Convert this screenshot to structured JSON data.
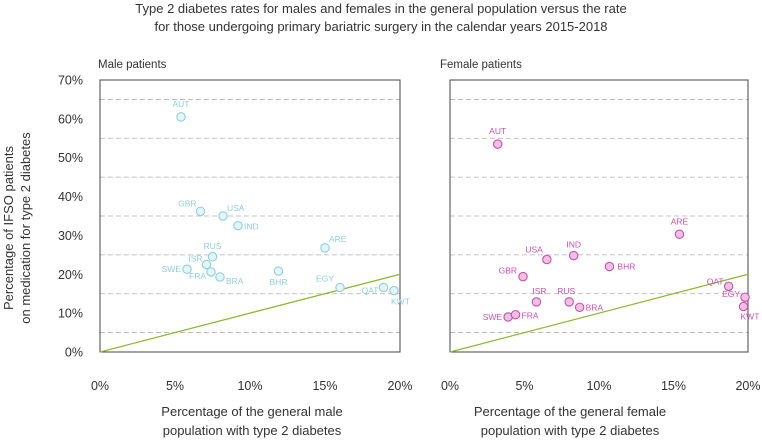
{
  "title_lines": [
    "Type 2 diabetes rates for males and females in the general population versus the rate",
    "for those undergoing primary bariatric surgery in the calendar years 2015-2018"
  ],
  "ylabel_lines": [
    "Percentage of IFSO patients",
    "on medication for type 2 diabetes"
  ],
  "y_ticks": [
    "0%",
    "10%",
    "20%",
    "30%",
    "40%",
    "50%",
    "60%",
    "70%"
  ],
  "x_ticks": [
    "0%",
    "5%",
    "10%",
    "15%",
    "20%"
  ],
  "colors": {
    "male": "#8ecfda",
    "female": "#cc4fae",
    "reference": "#8cba2c",
    "grid": "#b0b0b0"
  },
  "chart_data": [
    {
      "type": "scatter",
      "title": "Male patients",
      "xlabel_lines": [
        "Percentage of the general male",
        "population with type 2 diabetes"
      ],
      "xlim": [
        0,
        20
      ],
      "ylim": [
        0,
        70
      ],
      "grid": "dashed horizontal lines at 5, 15, 25, 35, 45, 55, 65",
      "reference_line": {
        "label": "",
        "x": [
          0,
          20
        ],
        "y": [
          0,
          20
        ]
      },
      "points": [
        {
          "label": "AUT",
          "x": 5.4,
          "y": 60.5
        },
        {
          "label": "GBR",
          "x": 6.7,
          "y": 36.2
        },
        {
          "label": "USA",
          "x": 8.2,
          "y": 35.0
        },
        {
          "label": "IND",
          "x": 9.2,
          "y": 32.5
        },
        {
          "label": "ARE",
          "x": 15.0,
          "y": 26.8
        },
        {
          "label": "RUS",
          "x": 7.5,
          "y": 24.5
        },
        {
          "label": "ISR",
          "x": 7.1,
          "y": 22.5
        },
        {
          "label": "SWE",
          "x": 5.8,
          "y": 21.3
        },
        {
          "label": "FRA",
          "x": 7.4,
          "y": 20.6
        },
        {
          "label": "BRA",
          "x": 8.0,
          "y": 19.3
        },
        {
          "label": "BHR",
          "x": 11.9,
          "y": 20.8
        },
        {
          "label": "EGY",
          "x": 16.0,
          "y": 16.6
        },
        {
          "label": "QAT",
          "x": 18.9,
          "y": 16.6
        },
        {
          "label": "KWT",
          "x": 19.6,
          "y": 15.8
        }
      ]
    },
    {
      "type": "scatter",
      "title": "Female patients",
      "xlabel_lines": [
        "Percentage of the general female",
        "population with type 2 diabetes"
      ],
      "xlim": [
        0,
        20
      ],
      "ylim": [
        0,
        70
      ],
      "grid": "dashed horizontal lines at 5, 15, 25, 35, 45, 55, 65",
      "reference_line": {
        "label": "",
        "x": [
          0,
          20
        ],
        "y": [
          0,
          20
        ]
      },
      "points": [
        {
          "label": "AUT",
          "x": 3.2,
          "y": 53.5
        },
        {
          "label": "ARE",
          "x": 15.4,
          "y": 30.3
        },
        {
          "label": "IND",
          "x": 8.3,
          "y": 24.8
        },
        {
          "label": "USA",
          "x": 6.5,
          "y": 23.8
        },
        {
          "label": "BHR",
          "x": 10.7,
          "y": 22.0
        },
        {
          "label": "GBR",
          "x": 4.9,
          "y": 19.4
        },
        {
          "label": "ISR",
          "x": 5.8,
          "y": 12.9
        },
        {
          "label": "RUS",
          "x": 8.0,
          "y": 12.9
        },
        {
          "label": "BRA",
          "x": 8.7,
          "y": 11.5
        },
        {
          "label": "SWE",
          "x": 3.9,
          "y": 9.0
        },
        {
          "label": "FRA",
          "x": 4.4,
          "y": 9.6
        },
        {
          "label": "QAT",
          "x": 18.7,
          "y": 16.9
        },
        {
          "label": "EGY",
          "x": 19.8,
          "y": 14.1
        },
        {
          "label": "KWT",
          "x": 19.7,
          "y": 11.7
        }
      ]
    }
  ]
}
